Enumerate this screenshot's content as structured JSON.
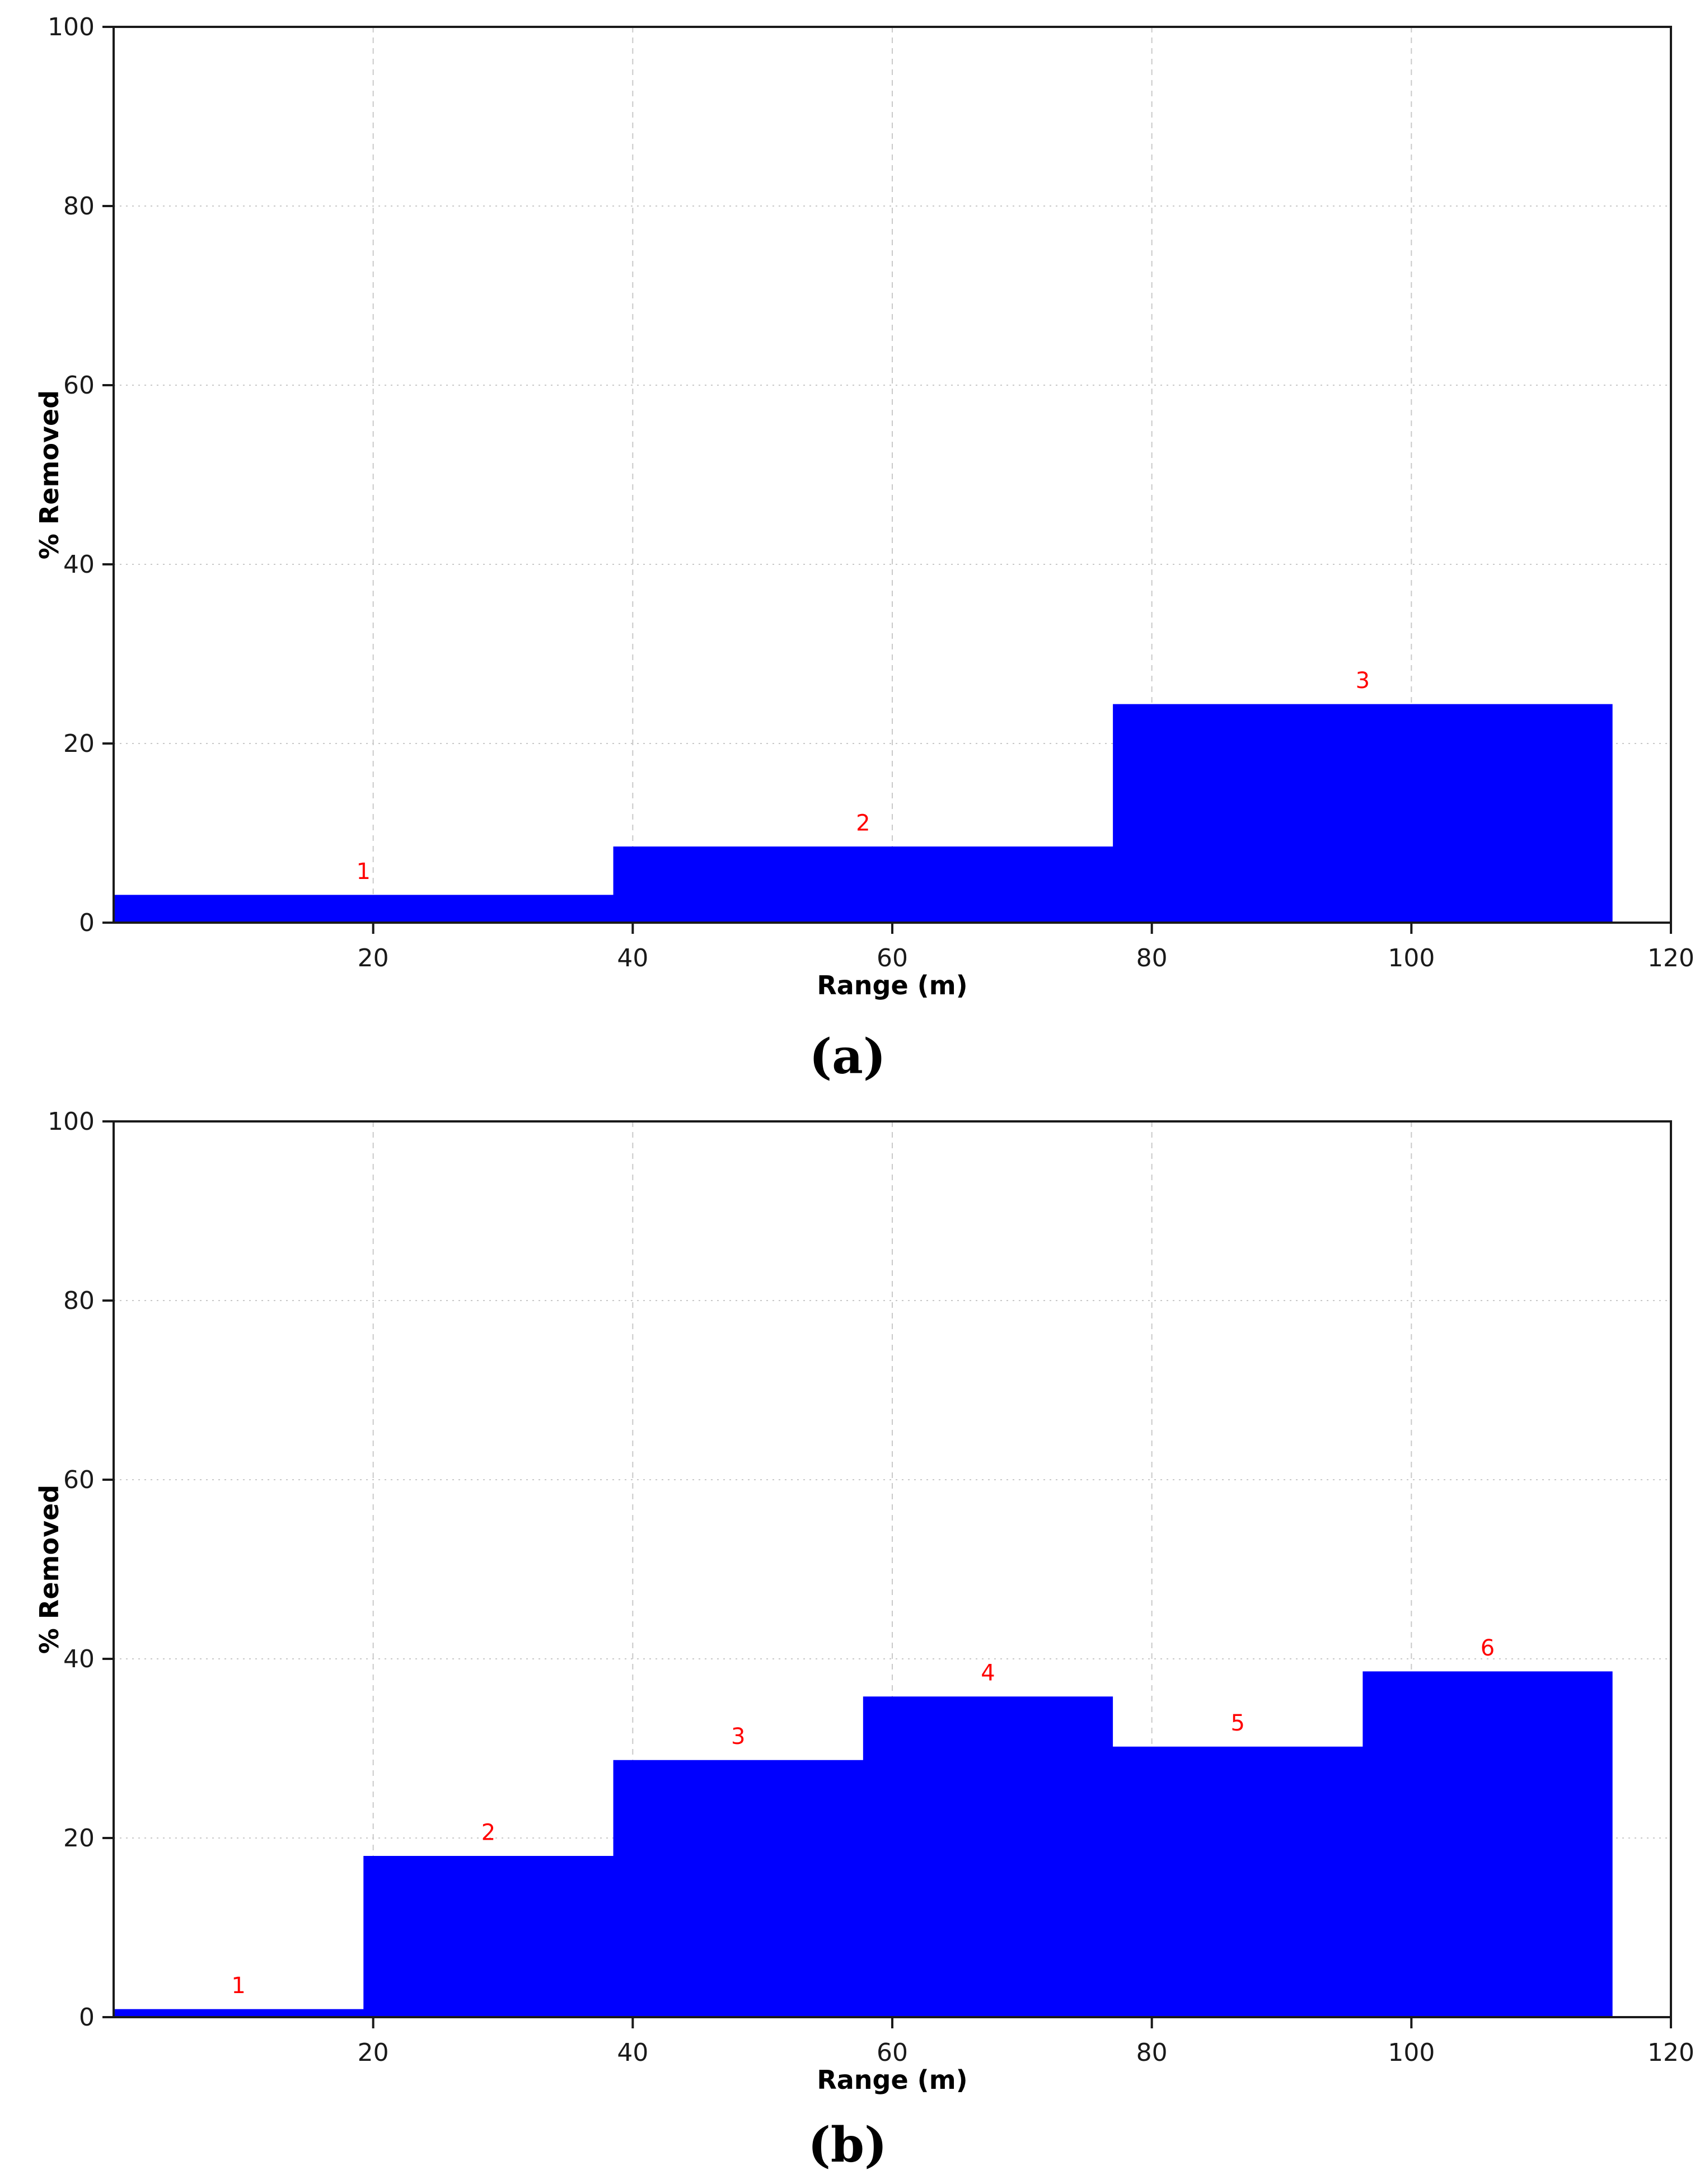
{
  "page": {
    "background": "#ffffff"
  },
  "chart_data": [
    {
      "type": "bar",
      "caption": "(a)",
      "xlabel": "Range (m)",
      "ylabel": "% Removed",
      "xlim": [
        0,
        120
      ],
      "ylim": [
        0,
        100
      ],
      "xticks": [
        20,
        40,
        60,
        80,
        100,
        120
      ],
      "yticks": [
        0,
        20,
        40,
        60,
        80,
        100
      ],
      "grid": true,
      "bin_edges": [
        0,
        38.5,
        77,
        115.5
      ],
      "values": [
        3.1,
        8.5,
        24.4
      ],
      "bar_labels": [
        "1",
        "2",
        "3"
      ],
      "bar_color": "#0000ff",
      "label_color": "#ff0000",
      "axis_color": "#1a1a1a",
      "grid_color": "#c9c9c9"
    },
    {
      "type": "bar",
      "caption": "(b)",
      "xlabel": "Range (m)",
      "ylabel": "% Removed",
      "xlim": [
        0,
        120
      ],
      "ylim": [
        0,
        100
      ],
      "xticks": [
        20,
        40,
        60,
        80,
        100,
        120
      ],
      "yticks": [
        0,
        20,
        40,
        60,
        80,
        100
      ],
      "grid": true,
      "bin_edges": [
        0,
        19.25,
        38.5,
        57.75,
        77,
        96.25,
        115.5
      ],
      "values": [
        0.9,
        18.0,
        28.7,
        35.8,
        30.2,
        38.6
      ],
      "bar_labels": [
        "1",
        "2",
        "3",
        "4",
        "5",
        "6"
      ],
      "bar_color": "#0000ff",
      "label_color": "#ff0000",
      "axis_color": "#1a1a1a",
      "grid_color": "#c9c9c9"
    }
  ]
}
